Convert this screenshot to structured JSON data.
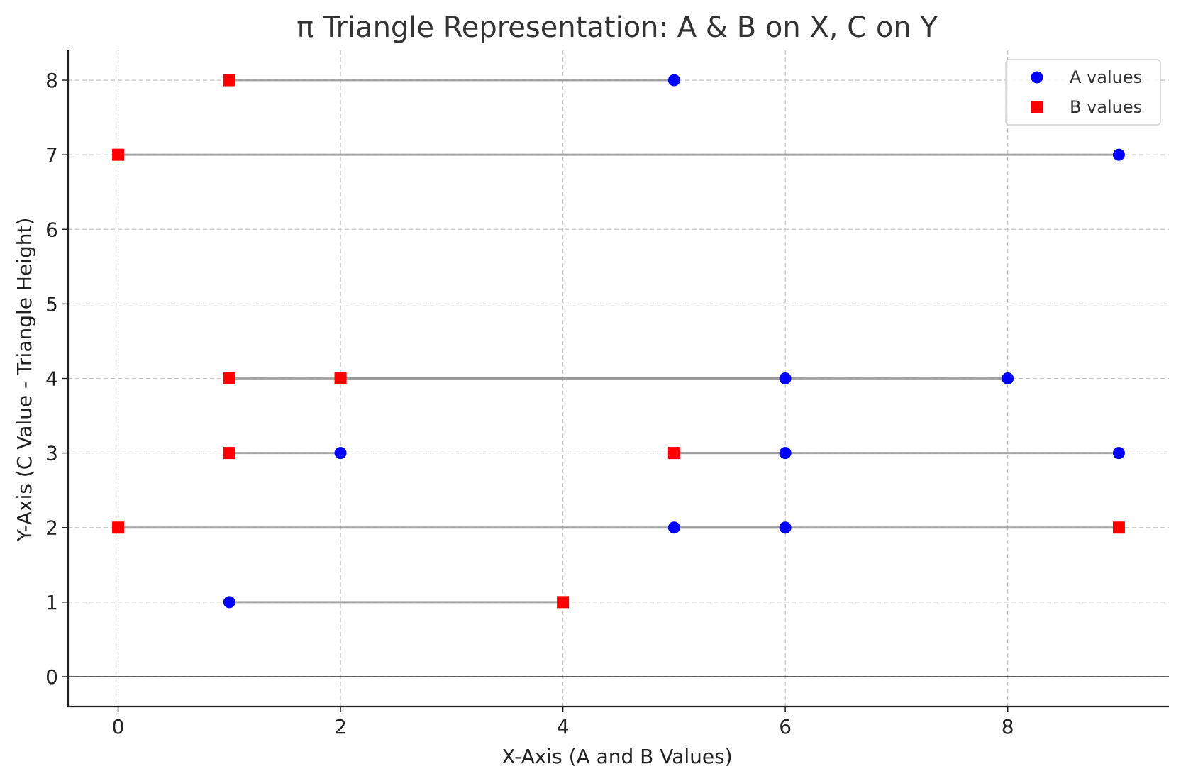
{
  "chart_data": {
    "type": "scatter",
    "title": "π Triangle Representation: A & B on X, C on Y",
    "xlabel": "X-Axis (A and B Values)",
    "ylabel": "Y-Axis (C Value - Triangle Height)",
    "xlim": [
      -0.45,
      9.45
    ],
    "ylim": [
      -0.4,
      8.4
    ],
    "xticks": [
      0,
      2,
      4,
      6,
      8
    ],
    "yticks": [
      0,
      1,
      2,
      3,
      4,
      5,
      6,
      7,
      8
    ],
    "grid": true,
    "legend_position": "top-right",
    "horizontal_line_at_y": 0,
    "series": [
      {
        "name": "A values",
        "color": "#0000ff",
        "marker": "circle",
        "points": [
          [
            5,
            8
          ],
          [
            9,
            7
          ],
          [
            8,
            4
          ],
          [
            6,
            4
          ],
          [
            2,
            3
          ],
          [
            6,
            3
          ],
          [
            9,
            3
          ],
          [
            5,
            2
          ],
          [
            6,
            2
          ],
          [
            1,
            1
          ]
        ]
      },
      {
        "name": "B values",
        "color": "#ff0000",
        "marker": "square",
        "points": [
          [
            1,
            8
          ],
          [
            0,
            7
          ],
          [
            1,
            4
          ],
          [
            2,
            4
          ],
          [
            1,
            3
          ],
          [
            5,
            3
          ],
          [
            0,
            2
          ],
          [
            9,
            2
          ],
          [
            4,
            1
          ]
        ]
      }
    ],
    "connector_color": "#999999",
    "connectors": [
      {
        "a": 5,
        "b": 1,
        "c": 8
      },
      {
        "a": 9,
        "b": 0,
        "c": 7
      },
      {
        "a": 8,
        "b": 2,
        "c": 4
      },
      {
        "a": 6,
        "b": 1,
        "c": 4
      },
      {
        "a": 2,
        "b": 1,
        "c": 3
      },
      {
        "a": 6,
        "b": 5,
        "c": 3
      },
      {
        "a": 9,
        "b": 5,
        "c": 3
      },
      {
        "a": 5,
        "b": 9,
        "c": 2
      },
      {
        "a": 6,
        "b": 0,
        "c": 2
      },
      {
        "a": 1,
        "b": 4,
        "c": 1
      }
    ]
  }
}
